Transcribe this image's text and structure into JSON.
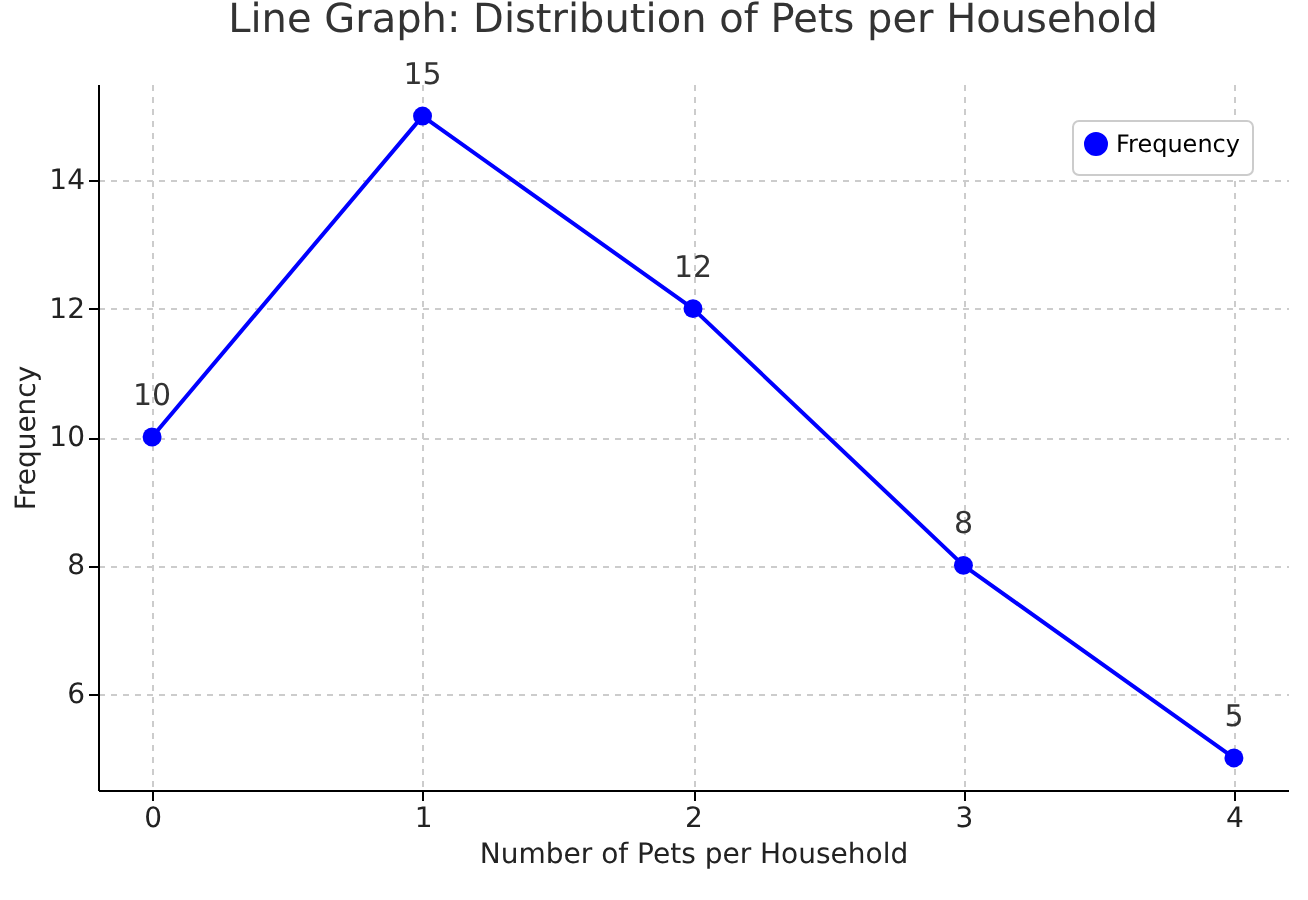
{
  "chart_data": {
    "type": "line",
    "title": "Line Graph: Distribution of Pets per Household",
    "xlabel": "Number of Pets per Household",
    "ylabel": "Frequency",
    "x": [
      0,
      1,
      2,
      3,
      4
    ],
    "series": [
      {
        "name": "Frequency",
        "color": "#0000ff",
        "values": [
          10,
          15,
          12,
          8,
          5
        ]
      }
    ],
    "xlim": [
      -0.2,
      4.2
    ],
    "xticks": [
      0,
      1,
      2,
      3,
      4
    ],
    "ylim": [
      4.5,
      15.5
    ],
    "yticks": [
      6,
      8,
      10,
      12,
      14
    ],
    "grid": true,
    "legend": "top right",
    "marker": "circle",
    "line_style": "solid",
    "data_labels": true
  }
}
